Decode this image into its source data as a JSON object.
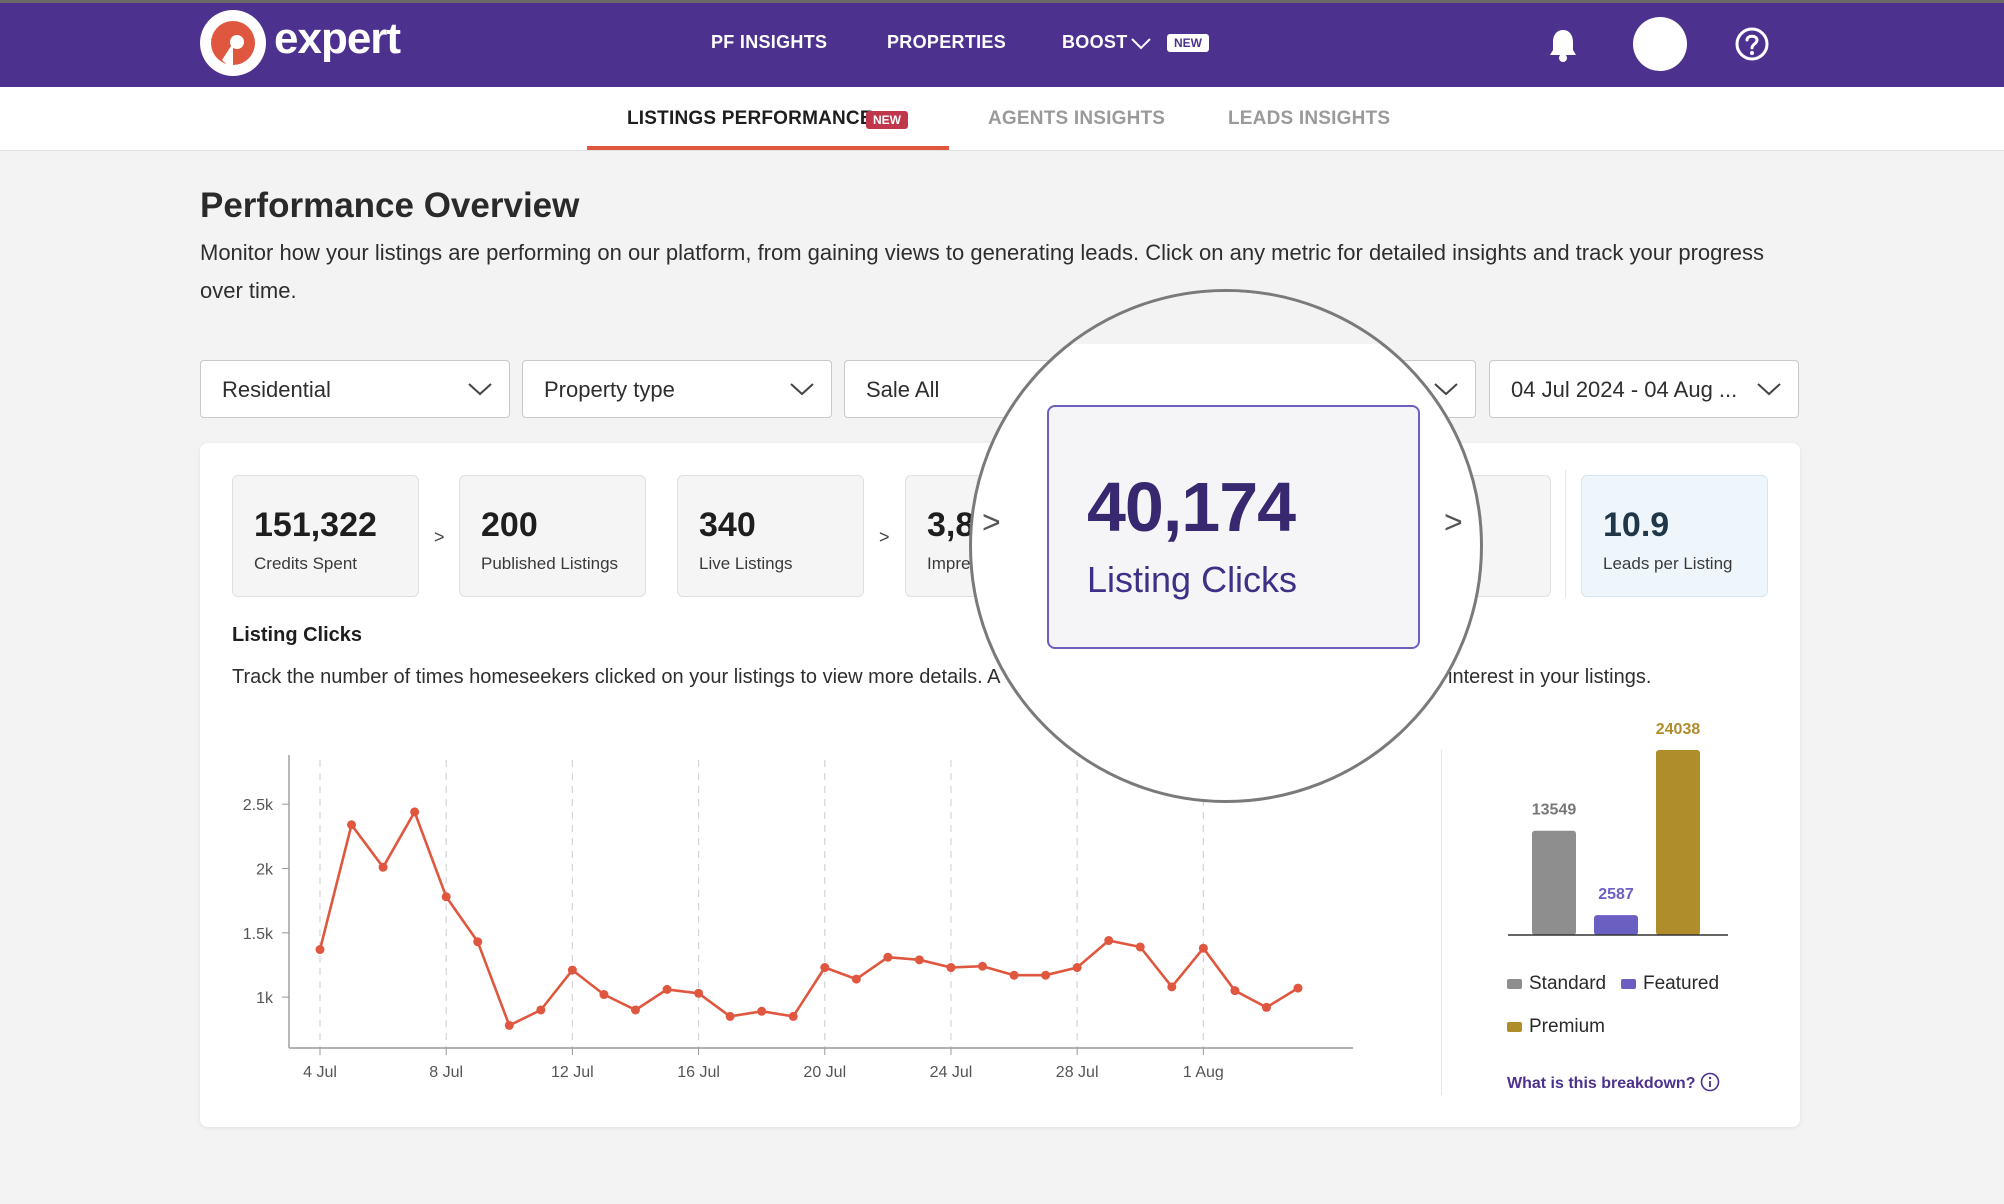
{
  "header": {
    "logo_text": "expert",
    "nav": [
      {
        "label": "PF INSIGHTS"
      },
      {
        "label": "PROPERTIES"
      },
      {
        "label": "BOOST",
        "badge": "NEW"
      }
    ],
    "brand_color": "#4c318e"
  },
  "subnav": {
    "tabs": [
      {
        "label": "LISTINGS PERFORMANCE",
        "badge": "NEW",
        "active": true
      },
      {
        "label": "AGENTS INSIGHTS",
        "active": false
      },
      {
        "label": "LEADS INSIGHTS",
        "active": false
      }
    ]
  },
  "page": {
    "title": "Performance Overview",
    "description": "Monitor how your listings are performing on our platform, from gaining views to generating leads. Click on any metric for detailed insights and track your progress over time."
  },
  "filters": [
    {
      "value": "Residential"
    },
    {
      "value": "Property type"
    },
    {
      "value": "Sale All"
    },
    {
      "value": ""
    },
    {
      "value": "04 Jul 2024 - 04 Aug ..."
    }
  ],
  "metrics": [
    {
      "value": "151,322",
      "label": "Credits Spent"
    },
    {
      "value": "200",
      "label": "Published Listings"
    },
    {
      "value": "340",
      "label": "Live Listings"
    },
    {
      "value": "3,8",
      "label": "Impre"
    },
    {
      "value": "10.9",
      "label": "Leads per Listing"
    }
  ],
  "arrow_glyph": ">",
  "magnified": {
    "value": "40,174",
    "label": "Listing Clicks"
  },
  "section": {
    "title": "Listing Clicks",
    "description_left": "Track the number of times homeseekers clicked on your listings to view more details. A",
    "description_right": "interest in your listings."
  },
  "chart_data": [
    {
      "type": "line",
      "x": [
        "4 Jul",
        "5 Jul",
        "6 Jul",
        "7 Jul",
        "8 Jul",
        "9 Jul",
        "10 Jul",
        "11 Jul",
        "12 Jul",
        "13 Jul",
        "14 Jul",
        "15 Jul",
        "16 Jul",
        "17 Jul",
        "18 Jul",
        "19 Jul",
        "20 Jul",
        "21 Jul",
        "22 Jul",
        "23 Jul",
        "24 Jul",
        "25 Jul",
        "26 Jul",
        "27 Jul",
        "28 Jul",
        "29 Jul",
        "30 Jul",
        "31 Jul",
        "1 Aug",
        "2 Aug",
        "3 Aug",
        "4 Aug"
      ],
      "values": [
        1370,
        2340,
        2010,
        2440,
        1780,
        1430,
        780,
        900,
        1210,
        1020,
        900,
        1060,
        1030,
        850,
        890,
        850,
        1230,
        1140,
        1310,
        1290,
        1230,
        1240,
        1170,
        1170,
        1230,
        1440,
        1390,
        1080,
        1380,
        1050,
        920,
        1070
      ],
      "x_ticks": [
        "4 Jul",
        "8 Jul",
        "12 Jul",
        "16 Jul",
        "20 Jul",
        "24 Jul",
        "28 Jul",
        "1 Aug"
      ],
      "y_ticks": [
        "1k",
        "1.5k",
        "2k",
        "2.5k"
      ],
      "y_tick_values": [
        1000,
        1500,
        2000,
        2500
      ],
      "ylim": [
        550,
        2960
      ],
      "color": "#e0573f",
      "grid": "vertical dashed at x ticks"
    },
    {
      "type": "bar",
      "categories": [
        "Standard",
        "Featured",
        "Premium"
      ],
      "values": [
        13549,
        2587,
        24038
      ],
      "colors": [
        "#8e8e8e",
        "#6c5fc2",
        "#b08d2b"
      ],
      "ylim": [
        0,
        24038
      ]
    }
  ],
  "legend": [
    "Standard",
    "Featured",
    "Premium"
  ],
  "breakdown_link": "What is this breakdown?"
}
